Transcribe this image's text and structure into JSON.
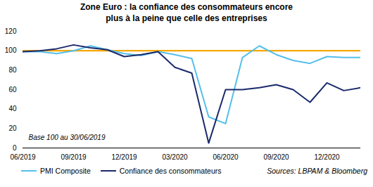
{
  "chart_data": {
    "type": "line",
    "title": "Zone Euro : la confiance des consommateurs encore\nplus à la peine que celle des entreprises",
    "annotation": "Base 100 au 30/06/2019",
    "sources": "Sources: LBPAM & Bloomberg",
    "categories": [
      "06/2019",
      null,
      null,
      "09/2019",
      null,
      null,
      "12/2019",
      null,
      null,
      "03/2020",
      null,
      null,
      "06/2020",
      null,
      null,
      "09/2020",
      null,
      null,
      "12/2020",
      null,
      null
    ],
    "series": [
      {
        "name": "PMI Composite",
        "color": "#55BFEA",
        "values": [
          99,
          99,
          97,
          100,
          105,
          101,
          97,
          95,
          99,
          96,
          92,
          32,
          25,
          93,
          105,
          96,
          90,
          87,
          94,
          93,
          93
        ]
      },
      {
        "name": "Confiance des consommateurs",
        "color": "#1B2A6B",
        "values": [
          99,
          100,
          102,
          106,
          103,
          101,
          94,
          96,
          99,
          83,
          77,
          5,
          60,
          60,
          62,
          65,
          60,
          47,
          67,
          59,
          62
        ]
      }
    ],
    "reference_line": {
      "value": 100,
      "color": "#F5A800"
    },
    "ylim": [
      0,
      120
    ],
    "yticks": [
      0,
      20,
      40,
      60,
      80,
      100,
      120
    ],
    "grid": false,
    "legend": "bottom"
  }
}
